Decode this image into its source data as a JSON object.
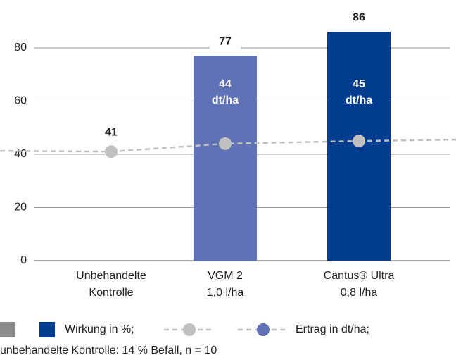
{
  "chart_data": {
    "type": "bar-line",
    "categories": [
      [
        "Unbehandelte",
        "Kontrolle"
      ],
      [
        "VGM 2",
        "1,0 l/ha"
      ],
      [
        "Cantus® Ultra",
        "0,8 l/ha"
      ]
    ],
    "ylim": [
      0,
      80
    ],
    "yticks": [
      0,
      20,
      40,
      60,
      80
    ],
    "grid": true,
    "series": [
      {
        "name": "Wirkung in %;",
        "type": "bar",
        "colors": [
          "#8c8c8c",
          "#5f72b5",
          "#003d8f"
        ],
        "values": [
          null,
          77,
          86
        ]
      },
      {
        "name": "Ertrag in dt/ha;",
        "type": "line",
        "colors": [
          "#c0c0c0",
          "#c0c0c0",
          "#c0c0c0"
        ],
        "legend_colors": [
          "#c0c0c0",
          "#5f72b5"
        ],
        "values": [
          41,
          44,
          45
        ],
        "value_labels": [
          "41",
          "44 dt/ha",
          "45 dt/ha"
        ]
      }
    ],
    "footnote": "unbehandelte Kontrolle: 14 % Befall, n = 10"
  }
}
